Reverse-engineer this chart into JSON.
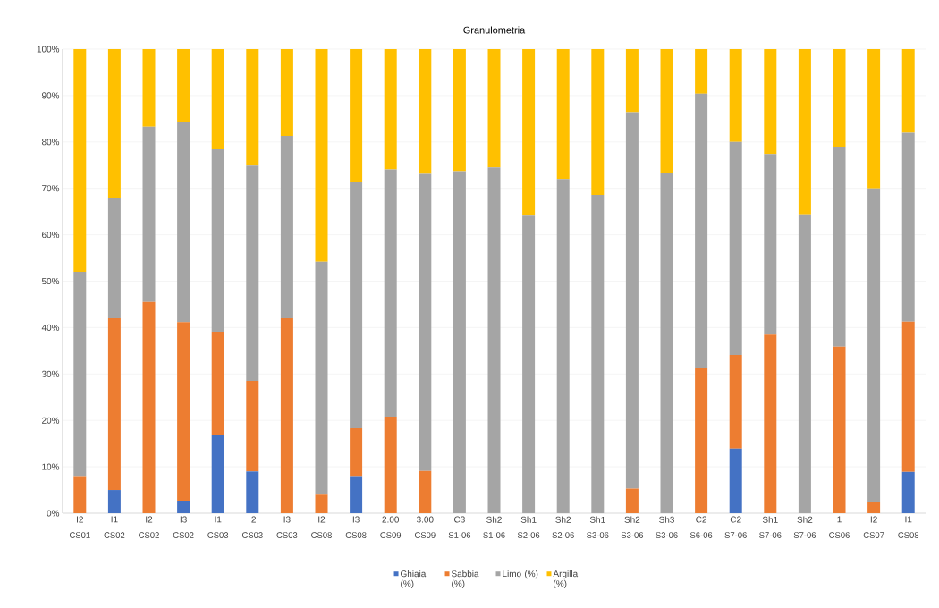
{
  "chart_data": {
    "type": "bar",
    "title": "Granulometria",
    "stacked": true,
    "grid": "y",
    "legend": "bottom",
    "categories": [
      "I2",
      "I1",
      "I2",
      "I3",
      "I1",
      "I2",
      "I3",
      "I2",
      "I3",
      "2.00",
      "3.00",
      "C3",
      "Sh2",
      "Sh1",
      "Sh2",
      "Sh1",
      "Sh2",
      "Sh3",
      "C2",
      "C2",
      "Sh1",
      "Sh2",
      "1",
      "I2",
      "I1"
    ],
    "annotations": [
      "CS01",
      "CS02",
      "CS02",
      "CS02",
      "CS03",
      "CS03",
      "CS03",
      "CS08",
      "CS08",
      "CS09",
      "CS09",
      "S1-06",
      "S1-06",
      "S2-06",
      "S2-06",
      "S3-06",
      "S3-06",
      "S3-06",
      "S6-06",
      "S7-06",
      "S7-06",
      "S7-06",
      "CS06",
      "CS07",
      "CS08"
    ],
    "ylim": [
      0,
      100
    ],
    "yticks": [
      {
        "value": 0,
        "label": "0%"
      },
      {
        "value": 10,
        "label": "10%"
      },
      {
        "value": 20,
        "label": "20%"
      },
      {
        "value": 30,
        "label": "30%"
      },
      {
        "value": 40,
        "label": "40%"
      },
      {
        "value": 50,
        "label": "50%"
      },
      {
        "value": 60,
        "label": "60%"
      },
      {
        "value": 70,
        "label": "70%"
      },
      {
        "value": 80,
        "label": "80%"
      },
      {
        "value": 90,
        "label": "90%"
      },
      {
        "value": 100,
        "label": "100%"
      }
    ],
    "series": [
      {
        "name": "Ghiaia (%)",
        "color": "#4472c4",
        "values": [
          0,
          5,
          0,
          2.7,
          16.8,
          9,
          0,
          0,
          8,
          0,
          0,
          0,
          0,
          0,
          0,
          0,
          0,
          0,
          0,
          13.9,
          0,
          0,
          0,
          0,
          8.9
        ]
      },
      {
        "name": "Sabbia (%)",
        "color": "#ed7d31",
        "values": [
          8,
          37,
          45.5,
          38.5,
          22.3,
          19.5,
          42,
          4,
          10.3,
          20.8,
          9.1,
          0,
          0,
          0,
          0,
          0,
          5.3,
          0,
          31.2,
          20.2,
          38.5,
          0,
          35.9,
          2.4,
          32.4
        ]
      },
      {
        "name": "Limo (%)",
        "color": "#a5a5a5",
        "values": [
          44,
          26,
          37.8,
          43.1,
          39.3,
          46.4,
          39.3,
          50.2,
          53,
          53.3,
          64,
          73.7,
          74.5,
          64.1,
          72,
          68.6,
          81.1,
          73.4,
          59.2,
          45.9,
          38.9,
          64.4,
          43.1,
          67.6,
          40.7
        ]
      },
      {
        "name": "Argilla (%)",
        "color": "#ffc000",
        "values": [
          48,
          32,
          16.7,
          15.7,
          21.6,
          25.1,
          18.7,
          45.8,
          28.7,
          25.9,
          26.9,
          26.3,
          25.5,
          35.9,
          28,
          31.4,
          13.6,
          26.6,
          9.6,
          20,
          22.6,
          35.6,
          21,
          30,
          18
        ]
      }
    ]
  }
}
